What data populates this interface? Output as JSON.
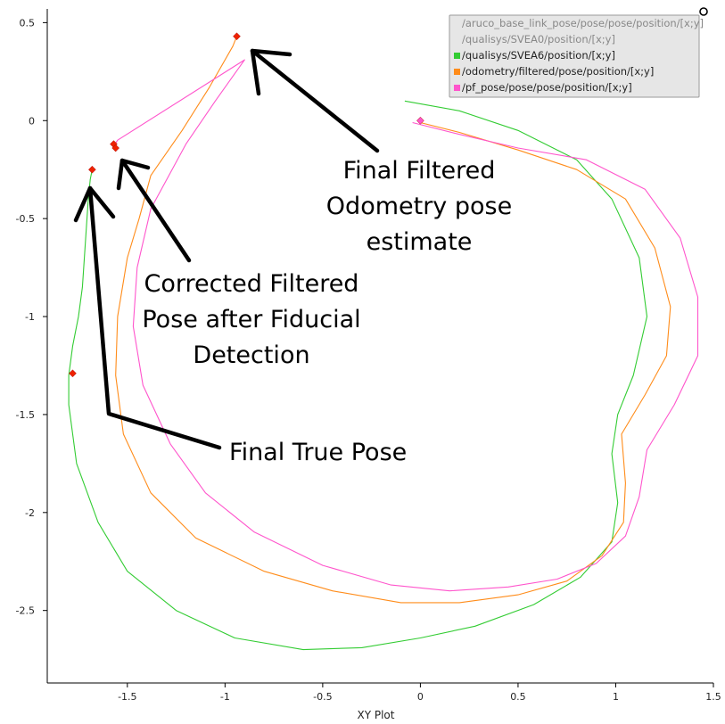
{
  "chart_data": {
    "type": "scatter",
    "title": "",
    "xlabel": "XY Plot",
    "ylabel": "",
    "xlim": [
      -1.91,
      1.5
    ],
    "ylim": [
      -2.87,
      0.57
    ],
    "xticks": [
      -1.5,
      -1,
      -0.5,
      0,
      0.5,
      1,
      1.5
    ],
    "xtick_labels": [
      "-1.5",
      "-1",
      "-0.5",
      "0",
      "0.5",
      "1",
      "1.5"
    ],
    "yticks": [
      0.5,
      0,
      -0.5,
      -1,
      -1.5,
      -2,
      -2.5
    ],
    "ytick_labels": [
      "0.5",
      "0",
      "-0.5",
      "-1",
      "-1.5",
      "-2",
      "-2.5"
    ],
    "grid": false,
    "legend_position": "top-right",
    "series": [
      {
        "name": "/aruco_base_link_pose/pose/pose/position/[x;y]",
        "color": "#ffffff",
        "points": []
      },
      {
        "name": "/qualisys/SVEA0/position/[x;y]",
        "color": "#ffffff",
        "points": []
      },
      {
        "name": "/qualisys/SVEA6/position/[x;y]",
        "color": "#33cc33",
        "points": [
          [
            -0.08,
            0.1
          ],
          [
            0.2,
            0.05
          ],
          [
            0.5,
            -0.05
          ],
          [
            0.8,
            -0.2
          ],
          [
            0.98,
            -0.4
          ],
          [
            1.12,
            -0.7
          ],
          [
            1.16,
            -1.0
          ],
          [
            1.09,
            -1.3
          ],
          [
            1.01,
            -1.5
          ],
          [
            0.98,
            -1.7
          ],
          [
            1.01,
            -1.95
          ],
          [
            0.98,
            -2.15
          ],
          [
            0.82,
            -2.33
          ],
          [
            0.58,
            -2.47
          ],
          [
            0.28,
            -2.58
          ],
          [
            0.0,
            -2.64
          ],
          [
            -0.3,
            -2.69
          ],
          [
            -0.6,
            -2.7
          ],
          [
            -0.95,
            -2.64
          ],
          [
            -1.25,
            -2.5
          ],
          [
            -1.5,
            -2.3
          ],
          [
            -1.65,
            -2.05
          ],
          [
            -1.76,
            -1.75
          ],
          [
            -1.8,
            -1.45
          ],
          [
            -1.8,
            -1.3
          ],
          [
            -1.78,
            -1.15
          ],
          [
            -1.75,
            -1.0
          ],
          [
            -1.73,
            -0.85
          ],
          [
            -1.72,
            -0.7
          ],
          [
            -1.71,
            -0.55
          ],
          [
            -1.7,
            -0.4
          ],
          [
            -1.69,
            -0.3
          ],
          [
            -1.68,
            -0.25
          ]
        ]
      },
      {
        "name": "/odometry/filtered/pose/position/[x;y]",
        "color": "#ff8c1a",
        "points": [
          [
            0.0,
            -0.01
          ],
          [
            0.2,
            -0.06
          ],
          [
            0.5,
            -0.15
          ],
          [
            0.8,
            -0.25
          ],
          [
            1.05,
            -0.4
          ],
          [
            1.2,
            -0.65
          ],
          [
            1.28,
            -0.95
          ],
          [
            1.26,
            -1.2
          ],
          [
            1.15,
            -1.4
          ],
          [
            1.03,
            -1.6
          ],
          [
            1.05,
            -1.85
          ],
          [
            1.04,
            -2.05
          ],
          [
            0.93,
            -2.22
          ],
          [
            0.75,
            -2.35
          ],
          [
            0.5,
            -2.42
          ],
          [
            0.2,
            -2.46
          ],
          [
            -0.1,
            -2.46
          ],
          [
            -0.45,
            -2.4
          ],
          [
            -0.8,
            -2.3
          ],
          [
            -1.15,
            -2.13
          ],
          [
            -1.38,
            -1.9
          ],
          [
            -1.52,
            -1.6
          ],
          [
            -1.56,
            -1.3
          ],
          [
            -1.55,
            -1.0
          ],
          [
            -1.5,
            -0.7
          ],
          [
            -1.44,
            -0.5
          ],
          [
            -1.38,
            -0.28
          ],
          [
            -1.22,
            -0.05
          ],
          [
            -1.08,
            0.17
          ],
          [
            -0.96,
            0.38
          ],
          [
            -0.94,
            0.43
          ]
        ]
      },
      {
        "name": "/pf_pose/pose/pose/position/[x;y]",
        "color": "#ff55cc",
        "points": [
          [
            -0.04,
            -0.01
          ],
          [
            0.2,
            -0.07
          ],
          [
            0.5,
            -0.14
          ],
          [
            0.85,
            -0.2
          ],
          [
            1.15,
            -0.35
          ],
          [
            1.33,
            -0.6
          ],
          [
            1.42,
            -0.9
          ],
          [
            1.42,
            -1.2
          ],
          [
            1.3,
            -1.45
          ],
          [
            1.16,
            -1.68
          ],
          [
            1.12,
            -1.92
          ],
          [
            1.05,
            -2.12
          ],
          [
            0.9,
            -2.26
          ],
          [
            0.7,
            -2.34
          ],
          [
            0.45,
            -2.38
          ],
          [
            0.15,
            -2.4
          ],
          [
            -0.15,
            -2.37
          ],
          [
            -0.5,
            -2.27
          ],
          [
            -0.85,
            -2.1
          ],
          [
            -1.1,
            -1.9
          ],
          [
            -1.28,
            -1.65
          ],
          [
            -1.42,
            -1.35
          ],
          [
            -1.47,
            -1.05
          ],
          [
            -1.45,
            -0.75
          ],
          [
            -1.38,
            -0.45
          ],
          [
            -1.2,
            -0.12
          ],
          [
            -1.05,
            0.1
          ],
          [
            -0.9,
            0.31
          ],
          [
            -1.55,
            -0.1
          ],
          [
            -1.57,
            -0.13
          ]
        ]
      }
    ],
    "markers": [
      {
        "x": -0.94,
        "y": 0.43,
        "color": "#ee2200"
      },
      {
        "x": -1.57,
        "y": -0.12,
        "color": "#ee2200"
      },
      {
        "x": -1.56,
        "y": -0.14,
        "color": "#ee2200"
      },
      {
        "x": -1.68,
        "y": -0.25,
        "color": "#ee2200"
      },
      {
        "x": -1.78,
        "y": -1.29,
        "color": "#ee2200"
      },
      {
        "x": 0.0,
        "y": 0.0,
        "color": "#ff55cc"
      }
    ],
    "annotations": [
      {
        "lines": [
          "Final Filtered",
          "Odometry pose",
          "estimate"
        ]
      },
      {
        "lines": [
          "Corrected Filtered",
          "Pose after Fiducial",
          "Detection"
        ]
      },
      {
        "lines": [
          "Final True Pose"
        ]
      }
    ]
  }
}
